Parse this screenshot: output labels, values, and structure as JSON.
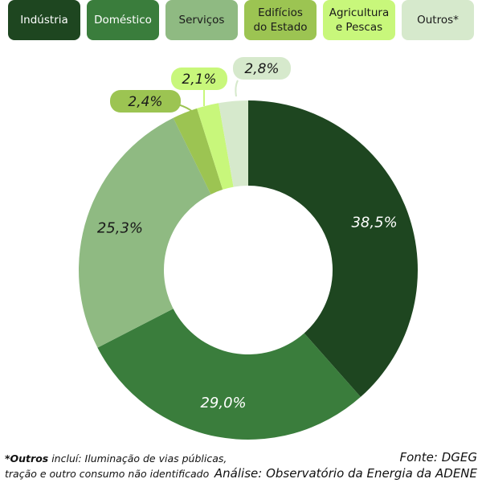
{
  "chart_data": {
    "type": "pie",
    "donut": true,
    "categories": [
      "Indústria",
      "Doméstico",
      "Serviços",
      "Edifícios\ndo Estado",
      "Agricultura\ne Pescas",
      "Outros*"
    ],
    "values": [
      38.5,
      29.0,
      25.3,
      2.4,
      2.1,
      2.8
    ],
    "labels": [
      "38,5%",
      "29,0%",
      "25,3%",
      "2,4%",
      "2,1%",
      "2,8%"
    ],
    "colors": [
      "#1e4620",
      "#3a7d3c",
      "#8fba82",
      "#9cc452",
      "#c8f77b",
      "#d6e9cc"
    ],
    "legend_text_colors": [
      "#ffffff",
      "#ffffff",
      "#1a1a1a",
      "#1a1a1a",
      "#1a1a1a",
      "#1a1a1a"
    ],
    "legend_position": "top",
    "start": "top",
    "direction": "clockwise"
  },
  "footnote": {
    "bold": "*Outros",
    "rest": " incluí: Iluminação de vias públicas,",
    "line2": "tração e outro consumo não identificado"
  },
  "source": {
    "line1": "Fonte: DGEG",
    "line2": "Análise: Observatório da Energia da ADENE"
  }
}
